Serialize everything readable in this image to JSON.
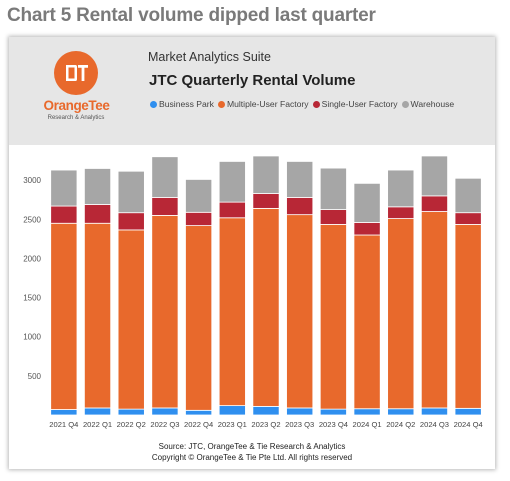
{
  "page": {
    "heading": "Chart 5 Rental volume dipped last quarter"
  },
  "brand": {
    "logo_text": "OrangeTee",
    "logo_subtext": "Research & Analytics",
    "logo_monogram": "OT",
    "suite": "Market Analytics Suite"
  },
  "colors": {
    "business_park": "#2f8fef",
    "multiple_user_factory": "#e8692c",
    "single_user_factory": "#b82736",
    "warehouse": "#a6a6a6",
    "brand_orange": "#e8692c"
  },
  "chart_data": {
    "type": "bar",
    "stacked": true,
    "title": "JTC Quarterly Rental Volume",
    "categories": [
      "2021 Q4",
      "2022 Q1",
      "2022 Q2",
      "2022 Q3",
      "2022 Q4",
      "2023 Q1",
      "2023 Q2",
      "2023 Q3",
      "2023 Q4",
      "2024 Q1",
      "2024 Q2",
      "2024 Q3",
      "2024 Q4"
    ],
    "series": [
      {
        "name": "Business Park",
        "color": "#2f8fef",
        "values": [
          70,
          90,
          75,
          90,
          60,
          120,
          110,
          90,
          75,
          80,
          80,
          90,
          85
        ]
      },
      {
        "name": "Multiple-User Factory",
        "color": "#e8692c",
        "values": [
          2380,
          2360,
          2290,
          2460,
          2360,
          2400,
          2530,
          2470,
          2360,
          2220,
          2430,
          2510,
          2350
        ]
      },
      {
        "name": "Single-User Factory",
        "color": "#b82736",
        "values": [
          220,
          240,
          220,
          230,
          170,
          200,
          190,
          220,
          190,
          160,
          150,
          200,
          150
        ]
      },
      {
        "name": "Warehouse",
        "color": "#a6a6a6",
        "values": [
          460,
          460,
          530,
          520,
          420,
          520,
          480,
          460,
          530,
          500,
          470,
          510,
          440
        ]
      }
    ],
    "yticks": [
      500,
      1000,
      1500,
      2000,
      2500,
      3000
    ],
    "ylim": [
      0,
      3450
    ],
    "grid": false,
    "legend_position": "top",
    "source": "Source: JTC, OrangeTee & Tie Research & Analytics",
    "copyright": "Copyright © OrangeTee & Tie Pte Ltd. All rights reserved"
  }
}
